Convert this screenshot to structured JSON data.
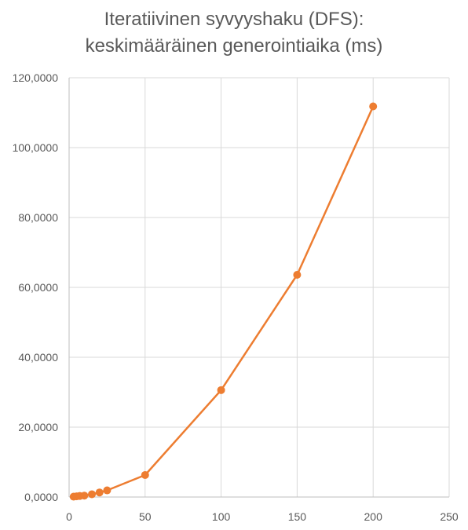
{
  "chart_data": {
    "type": "scatter",
    "title_lines": [
      "Iteratiivinen syvyyshaku (DFS):",
      "keskimääräinen generointiaika (ms)"
    ],
    "xlabel": "",
    "ylabel": "",
    "xlim": [
      0,
      250
    ],
    "ylim": [
      0,
      120
    ],
    "x_ticks": [
      0,
      50,
      100,
      150,
      200,
      250
    ],
    "x_tick_labels": [
      "0",
      "50",
      "100",
      "150",
      "200",
      "250"
    ],
    "y_ticks": [
      0,
      20,
      40,
      60,
      80,
      100,
      120
    ],
    "y_tick_labels": [
      "0,0000",
      "20,0000",
      "40,0000",
      "60,0000",
      "80,0000",
      "100,0000",
      "120,0000"
    ],
    "grid": true,
    "legend": "none",
    "color": "#ED7D31",
    "series": [
      {
        "x": [
          3,
          5,
          7,
          10,
          15,
          20,
          25,
          50,
          100,
          150,
          200
        ],
        "y": [
          0.1,
          0.2,
          0.3,
          0.4,
          0.8,
          1.3,
          1.9,
          6.3,
          30.6,
          63.6,
          111.8
        ]
      }
    ]
  }
}
